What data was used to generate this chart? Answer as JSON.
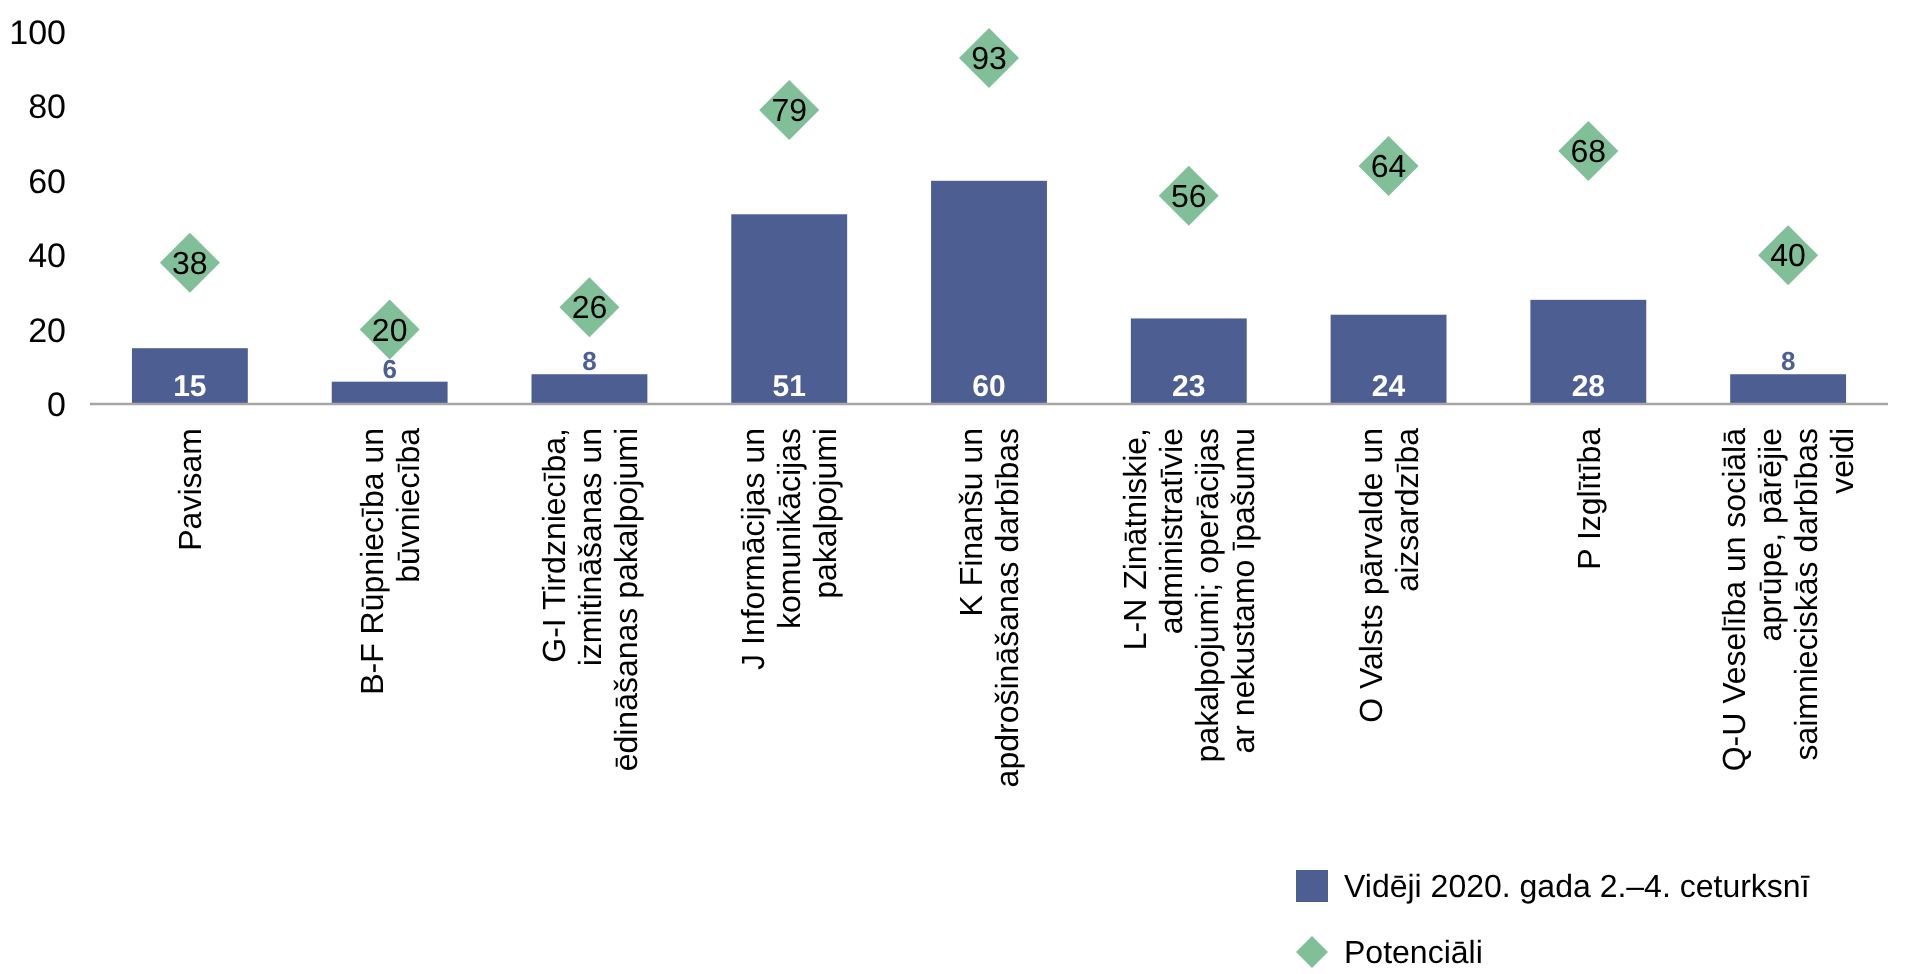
{
  "chart_data": {
    "type": "bar",
    "categories": [
      "Pavisam",
      "B-F Rūpniecība un būvniecība",
      "G-I Tirdzniecība, izmitināšanas un ēdināšanas pakalpojumi",
      "J Informācijas un komunikācijas pakalpojumi",
      "K Finanšu un apdrošināšanas darbības",
      "L-N Zinātniskie, administratīvie pakalpojumi; operācijas ar nekustamo īpašumu",
      "O Valsts pārvalde un aizsardzība",
      "P Izglītība",
      "Q-U Veselība un sociālā aprūpe, pārējie saimnieciskās darbības veidi"
    ],
    "series": [
      {
        "name": "Vidēji 2020. gada 2.–4. ceturksnī",
        "type": "bar",
        "color": "#4d5f92",
        "values": [
          15,
          6,
          8,
          51,
          60,
          23,
          24,
          28,
          8
        ]
      },
      {
        "name": "Potenciāli",
        "type": "scatter",
        "color": "#81bf98",
        "values": [
          38,
          20,
          26,
          79,
          93,
          56,
          64,
          68,
          40
        ]
      }
    ],
    "ylim": [
      0,
      100
    ],
    "yticks": [
      0,
      20,
      40,
      60,
      80,
      100
    ],
    "grid": false,
    "legend": "bottom right",
    "marker": "diamond",
    "data_labels": true
  }
}
